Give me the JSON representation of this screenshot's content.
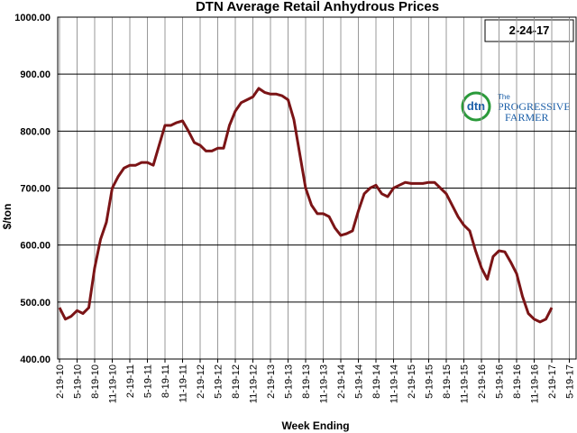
{
  "chart_data": {
    "type": "line",
    "title": "DTN Average Retail Anhydrous Prices",
    "annotation": "2-24-17",
    "logo_text": [
      "dtn",
      "The",
      "PROGRESSIVE",
      "FARMER"
    ],
    "y_label": "$/ton",
    "x_label": "Week Ending",
    "categories": [
      "2-19-10",
      null,
      null,
      "5-19-10",
      null,
      null,
      "8-19-10",
      null,
      null,
      "11-19-10",
      null,
      null,
      "2-19-11",
      null,
      null,
      "5-19-11",
      null,
      null,
      "8-19-11",
      null,
      null,
      "11-19-11",
      null,
      null,
      "2-19-12",
      null,
      null,
      "5-19-12",
      null,
      null,
      "8-19-12",
      null,
      null,
      "11-19-12",
      null,
      null,
      "2-19-13",
      null,
      null,
      "5-19-13",
      null,
      null,
      "8-19-13",
      null,
      null,
      "11-19-13",
      null,
      null,
      "2-19-14",
      null,
      null,
      "5-19-14",
      null,
      null,
      "8-19-14",
      null,
      null,
      "11-19-14",
      null,
      null,
      "2-19-15",
      null,
      null,
      "5-19-15",
      null,
      null,
      "8-19-15",
      null,
      null,
      "11-19-15",
      null,
      null,
      "2-19-16",
      null,
      null,
      "5-19-16",
      null,
      null,
      "8-19-16",
      null,
      null,
      "11-19-16",
      null,
      null,
      "2-19-17",
      null,
      null,
      "5-19-17"
    ],
    "series": [
      {
        "color": "#7b1416",
        "values": [
          490,
          470,
          475,
          485,
          480,
          490,
          560,
          610,
          640,
          700,
          720,
          735,
          740,
          740,
          745,
          745,
          740,
          775,
          810,
          810,
          815,
          818,
          800,
          780,
          775,
          765,
          765,
          770,
          770,
          810,
          835,
          850,
          855,
          860,
          875,
          868,
          865,
          865,
          862,
          855,
          820,
          760,
          700,
          670,
          655,
          655,
          650,
          630,
          617,
          620,
          625,
          660,
          690,
          700,
          705,
          690,
          685,
          700,
          705,
          710,
          708,
          708,
          708,
          710,
          710,
          700,
          690,
          670,
          650,
          635,
          625,
          590,
          560,
          540,
          580,
          590,
          588,
          570,
          550,
          510,
          480,
          470,
          465,
          470,
          490,
          null,
          null,
          null
        ]
      }
    ],
    "ylim": [
      400,
      1000
    ],
    "yticks": [
      {
        "value": 400,
        "label": "400.00"
      },
      {
        "value": 500,
        "label": "500.00"
      },
      {
        "value": 600,
        "label": "600.00"
      },
      {
        "value": 700,
        "label": "700.00"
      },
      {
        "value": 800,
        "label": "800.00"
      },
      {
        "value": 900,
        "label": "900.00"
      },
      {
        "value": 1000,
        "label": "1000.00"
      }
    ],
    "grid": true
  }
}
